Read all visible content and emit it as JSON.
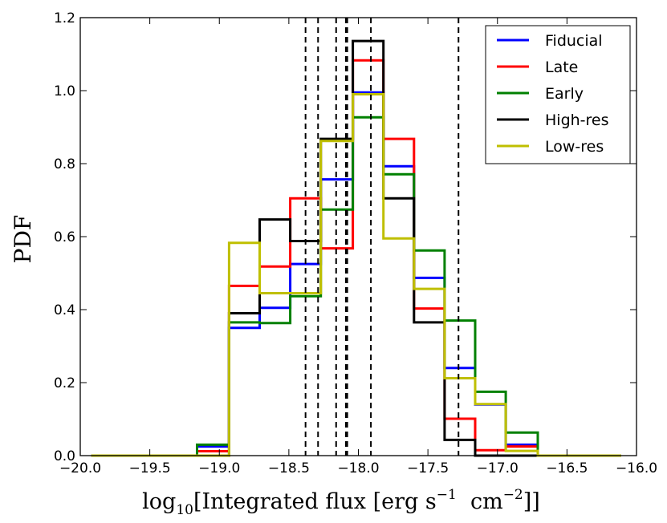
{
  "chart_data": {
    "type": "histogram",
    "xlabel": {
      "base": "log",
      "sub": "10",
      "main": "[Integrated flux [erg s",
      "sup1": "−1",
      "mid": "  cm",
      "sup2": "−2",
      "end": "]]"
    },
    "ylabel": "PDF",
    "xlim": [
      -20.0,
      -16.0
    ],
    "ylim": [
      0.0,
      1.2
    ],
    "x_ticks": [
      -20.0,
      -19.5,
      -19.0,
      -18.5,
      -18.0,
      -17.5,
      -17.0,
      -16.5,
      -16.0
    ],
    "x_tick_labels": [
      "−20.0",
      "−19.5",
      "−19.0",
      "−18.5",
      "−18.0",
      "−17.5",
      "−17.0",
      "−16.5",
      "−16.0"
    ],
    "y_ticks": [
      0.0,
      0.2,
      0.4,
      0.6,
      0.8,
      1.0,
      1.2
    ],
    "y_tick_labels": [
      "0.0",
      "0.2",
      "0.4",
      "0.6",
      "0.8",
      "1.0",
      "1.2"
    ],
    "grid": false,
    "legend_position": "top-right",
    "vlines": [
      -18.38,
      -18.29,
      -18.16,
      -18.09,
      -18.08,
      -17.91,
      -17.28
    ],
    "series": [
      {
        "name": "Fiducial",
        "color": "#0000ff",
        "edges": [
          -19.92,
          -19.16,
          -18.93,
          -18.71,
          -18.49,
          -18.27,
          -18.04,
          -17.82,
          -17.6,
          -17.38,
          -17.16,
          -16.94,
          -16.71,
          -16.11
        ],
        "values": [
          0.0,
          0.025,
          0.35,
          0.405,
          0.525,
          0.757,
          0.995,
          0.793,
          0.487,
          0.24,
          0.14,
          0.03,
          0.0
        ]
      },
      {
        "name": "Late",
        "color": "#ff0000",
        "edges": [
          -19.92,
          -19.16,
          -18.93,
          -18.71,
          -18.49,
          -18.27,
          -18.04,
          -17.82,
          -17.6,
          -17.38,
          -17.16,
          -16.94,
          -16.71,
          -16.11
        ],
        "values": [
          0.0,
          0.012,
          0.465,
          0.518,
          0.705,
          0.568,
          1.083,
          0.868,
          0.403,
          0.101,
          0.015,
          0.025,
          0.0
        ]
      },
      {
        "name": "Early",
        "color": "#008000",
        "edges": [
          -19.92,
          -19.16,
          -18.93,
          -18.71,
          -18.49,
          -18.27,
          -18.04,
          -17.82,
          -17.6,
          -17.38,
          -17.16,
          -16.94,
          -16.71,
          -16.11
        ],
        "values": [
          0.0,
          0.03,
          0.365,
          0.363,
          0.437,
          0.674,
          0.927,
          0.771,
          0.562,
          0.37,
          0.175,
          0.063,
          0.0
        ]
      },
      {
        "name": "High-res",
        "color": "#000000",
        "edges": [
          -19.92,
          -19.16,
          -18.93,
          -18.71,
          -18.49,
          -18.27,
          -18.04,
          -17.82,
          -17.6,
          -17.38,
          -17.16,
          -16.94,
          -16.71,
          -16.11
        ],
        "values": [
          0.0,
          0.0,
          0.39,
          0.647,
          0.588,
          0.868,
          1.136,
          0.705,
          0.365,
          0.043,
          0.0,
          0.0,
          0.0
        ]
      },
      {
        "name": "Low-res",
        "color": "#bfbf00",
        "edges": [
          -19.92,
          -19.16,
          -18.93,
          -18.71,
          -18.49,
          -18.27,
          -18.04,
          -17.82,
          -17.6,
          -17.38,
          -17.16,
          -16.94,
          -16.71,
          -16.11
        ],
        "values": [
          0.0,
          0.0,
          0.583,
          0.445,
          0.445,
          0.862,
          0.99,
          0.595,
          0.457,
          0.212,
          0.141,
          0.013,
          0.0
        ]
      }
    ]
  }
}
